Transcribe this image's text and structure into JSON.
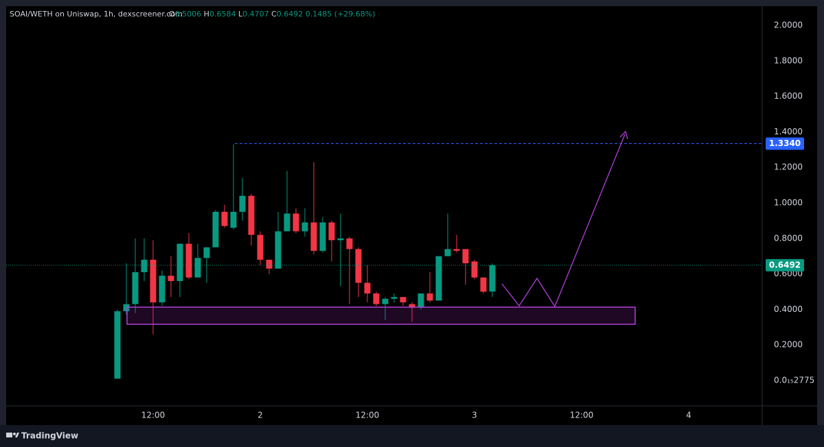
{
  "header": {
    "title": "SOAI/WETH on Uniswap, 1h, dexscreener.com",
    "change": 0.1485,
    "change_pct": "(+29.68%)"
  },
  "footer": {
    "brand": "TradingView"
  },
  "chart_data": {
    "type": "candlestick",
    "x": [
      0,
      1,
      2,
      3,
      4,
      5,
      6,
      7,
      8,
      9,
      10,
      11,
      12,
      13,
      14,
      15,
      16,
      17,
      18,
      19,
      20,
      21,
      22,
      23,
      24,
      25,
      26,
      27,
      28,
      29,
      30,
      31,
      32,
      33,
      34,
      35,
      36,
      37,
      38,
      39,
      40,
      41,
      42
    ],
    "open": [
      0.01,
      0.39,
      0.43,
      0.61,
      0.68,
      0.44,
      0.59,
      0.56,
      0.77,
      0.58,
      0.69,
      0.75,
      0.95,
      0.86,
      0.95,
      1.04,
      0.82,
      0.68,
      0.63,
      0.84,
      0.94,
      0.84,
      0.89,
      0.73,
      0.89,
      0.79,
      0.8,
      0.74,
      0.55,
      0.49,
      0.43,
      0.46,
      0.47,
      0.43,
      0.41,
      0.49,
      0.45,
      0.7,
      0.74,
      0.74,
      0.67,
      0.58,
      0.5006
    ],
    "high": [
      0.4,
      0.66,
      0.8,
      0.8,
      0.79,
      0.62,
      0.7,
      0.77,
      0.83,
      0.77,
      0.75,
      0.96,
      0.99,
      1.33,
      1.14,
      1.05,
      0.84,
      0.67,
      0.95,
      1.18,
      0.97,
      0.97,
      1.23,
      0.92,
      0.9,
      0.94,
      0.81,
      0.75,
      0.65,
      0.5,
      0.47,
      0.49,
      0.47,
      0.44,
      0.49,
      0.61,
      0.7,
      0.94,
      0.82,
      0.74,
      0.68,
      0.58,
      0.6584
    ],
    "low": [
      0.01,
      0.37,
      0.38,
      0.56,
      0.26,
      0.42,
      0.47,
      0.47,
      0.57,
      0.58,
      0.55,
      0.75,
      0.86,
      0.85,
      0.9,
      0.76,
      0.65,
      0.6,
      0.63,
      0.84,
      0.83,
      0.81,
      0.71,
      0.72,
      0.67,
      0.53,
      0.43,
      0.47,
      0.44,
      0.42,
      0.34,
      0.44,
      0.42,
      0.33,
      0.4,
      0.44,
      0.45,
      0.7,
      0.72,
      0.54,
      0.57,
      0.49,
      0.4707
    ],
    "close": [
      0.39,
      0.43,
      0.61,
      0.68,
      0.44,
      0.59,
      0.56,
      0.77,
      0.58,
      0.69,
      0.75,
      0.95,
      0.87,
      0.95,
      1.04,
      0.82,
      0.68,
      0.63,
      0.84,
      0.94,
      0.84,
      0.89,
      0.73,
      0.89,
      0.79,
      0.8,
      0.74,
      0.55,
      0.49,
      0.43,
      0.46,
      0.47,
      0.44,
      0.41,
      0.49,
      0.45,
      0.7,
      0.74,
      0.73,
      0.66,
      0.58,
      0.5,
      0.6492
    ],
    "up_color": "#089981",
    "down_color": "#f23645",
    "xlim": [
      -12.46,
      72.23
    ],
    "xticks": [
      {
        "value": 4,
        "label": "12:00"
      },
      {
        "value": 16,
        "label": "2"
      },
      {
        "value": 28,
        "label": "12:00"
      },
      {
        "value": 40,
        "label": "3"
      },
      {
        "value": 52,
        "label": "12:00"
      },
      {
        "value": 64,
        "label": "4"
      }
    ],
    "ylim": [
      -0.143,
      2.108
    ],
    "yticks": [
      {
        "value": 2.775e-16,
        "label": "0.0₁₅2775"
      },
      {
        "value": 0.2,
        "label": "0.2000"
      },
      {
        "value": 0.4,
        "label": "0.4000"
      },
      {
        "value": 0.6,
        "label": "0.6000"
      },
      {
        "value": 0.8,
        "label": "0.8000"
      },
      {
        "value": 1.0,
        "label": "1.0000"
      },
      {
        "value": 1.2,
        "label": "1.2000"
      },
      {
        "value": 1.4,
        "label": "1.4000"
      },
      {
        "value": 1.6,
        "label": "1.6000"
      },
      {
        "value": 1.8,
        "label": "1.8000"
      },
      {
        "value": 2.0,
        "label": "2.0000"
      }
    ],
    "price_lines": [
      {
        "value": 1.334,
        "label": "1.3340",
        "color": "#2962ff"
      },
      {
        "value": 0.6492,
        "label": "0.6492",
        "color": "#089981"
      }
    ]
  }
}
